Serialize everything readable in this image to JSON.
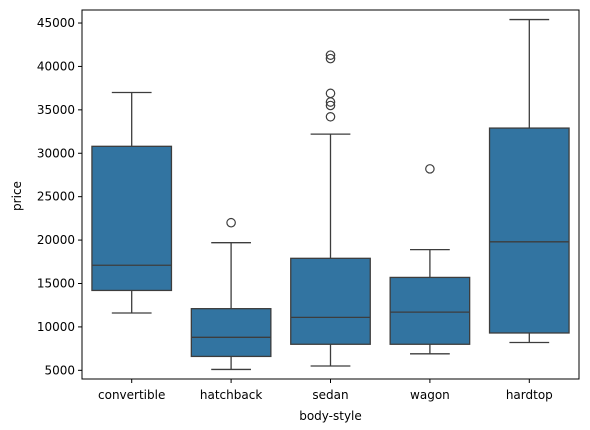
{
  "chart_data": {
    "type": "box",
    "title": "",
    "xlabel": "body-style",
    "ylabel": "price",
    "ylim": [
      4000,
      46500
    ],
    "yticks": [
      5000,
      10000,
      15000,
      20000,
      25000,
      30000,
      35000,
      40000,
      45000
    ],
    "box_color": "#3274a1",
    "line_color": "#3d3d3d",
    "categories": [
      "convertible",
      "hatchback",
      "sedan",
      "wagon",
      "hardtop"
    ],
    "boxes": [
      {
        "category": "convertible",
        "whisker_low": 11600,
        "q1": 14200,
        "median": 17100,
        "q3": 30800,
        "whisker_high": 37000,
        "fliers": []
      },
      {
        "category": "hatchback",
        "whisker_low": 5100,
        "q1": 6600,
        "median": 8800,
        "q3": 12100,
        "whisker_high": 19700,
        "fliers": [
          22000
        ]
      },
      {
        "category": "sedan",
        "whisker_low": 5500,
        "q1": 8000,
        "median": 11100,
        "q3": 17900,
        "whisker_high": 32200,
        "fliers": [
          34200,
          35500,
          35900,
          36900,
          40900,
          41300
        ]
      },
      {
        "category": "wagon",
        "whisker_low": 6900,
        "q1": 8000,
        "median": 11700,
        "q3": 15700,
        "whisker_high": 18900,
        "fliers": [
          28200
        ]
      },
      {
        "category": "hardtop",
        "whisker_low": 8200,
        "q1": 9300,
        "median": 19800,
        "q3": 32900,
        "whisker_high": 45400,
        "fliers": []
      }
    ]
  }
}
